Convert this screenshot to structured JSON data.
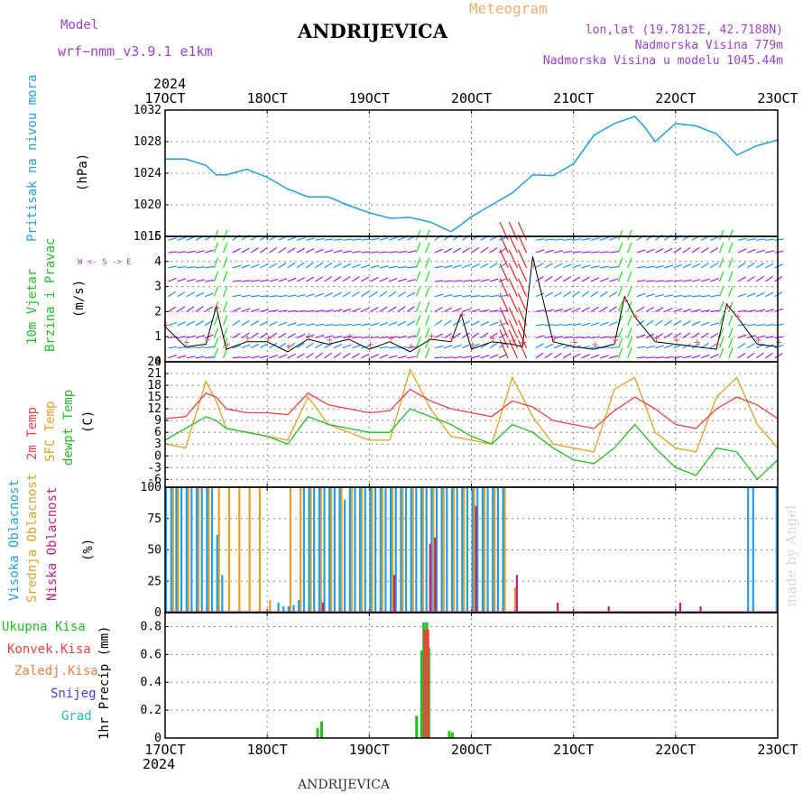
{
  "header": {
    "model_label": "Model",
    "model_name": "wrf−nmm_v3.9.1  e1km",
    "title": "ANDRIJEVICA",
    "meteogram_label": "Meteogram",
    "lonlat": "lon,lat (19.7812E, 42.7188N)",
    "altitude": "Nadmorska Visina 779m",
    "model_altitude": "Nadmorska Visina u modelu 1045.44m"
  },
  "footer": "ANDRIJEVICA",
  "made_by": "made by Angel",
  "time_axis": {
    "year": "2024",
    "ticks": [
      "17OCT",
      "18OCT",
      "19OCT",
      "20OCT",
      "21OCT",
      "22OCT",
      "23OCT"
    ]
  },
  "chart_data": [
    {
      "type": "line",
      "panel": "pressure",
      "labels": {
        "left": "Pritisak na nivou mora",
        "unit": "(hPa)"
      },
      "ylim": [
        1016,
        1032
      ],
      "yticks": [
        "1032",
        "1028",
        "1024",
        "1020",
        "1016"
      ],
      "grid": true,
      "colors": {
        "line": "#1ea0e6"
      },
      "x": [
        0,
        0.2,
        0.4,
        0.5,
        0.6,
        0.8,
        1.0,
        1.2,
        1.4,
        1.6,
        1.8,
        2.0,
        2.2,
        2.4,
        2.6,
        2.8,
        2.9,
        3.0,
        3.2,
        3.4,
        3.6,
        3.8,
        4.0,
        4.2,
        4.4,
        4.6,
        4.7,
        4.8,
        5.0,
        5.2,
        5.4,
        5.6,
        5.8,
        6.0
      ],
      "values": [
        1025.8,
        1025.8,
        1025.0,
        1023.8,
        1023.8,
        1024.5,
        1023.5,
        1022.0,
        1021.0,
        1021.0,
        1019.9,
        1019.0,
        1018.3,
        1018.4,
        1017.8,
        1016.6,
        1017.5,
        1018.5,
        1020.0,
        1021.5,
        1023.8,
        1023.7,
        1025.2,
        1028.8,
        1030.3,
        1031.2,
        1029.8,
        1028.0,
        1030.3,
        1030.0,
        1029.0,
        1026.3,
        1027.5,
        1028.2
      ]
    },
    {
      "type": "line",
      "panel": "wind",
      "labels": {
        "left1": "10m Vjetar",
        "left2": "Brzina i Pravac",
        "unit": "(m/s)",
        "compass": "W <- S -> E"
      },
      "ylim": [
        0,
        5
      ],
      "yticks": [
        "5",
        "4",
        "3",
        "2",
        "1",
        "0"
      ],
      "grid": true,
      "colors": {
        "speed": "#000000",
        "gust": "#ff4040",
        "barb_calm": "#a020f0",
        "barb_mid": "#1e90ff",
        "barb_strong": "#20e020",
        "barb_max": "#ff2020"
      },
      "x": [
        0,
        0.2,
        0.4,
        0.5,
        0.6,
        0.8,
        1.0,
        1.2,
        1.4,
        1.6,
        1.8,
        2.0,
        2.2,
        2.4,
        2.6,
        2.8,
        2.9,
        3.0,
        3.2,
        3.4,
        3.5,
        3.6,
        3.8,
        4.0,
        4.2,
        4.4,
        4.5,
        4.6,
        4.8,
        5.0,
        5.2,
        5.4,
        5.5,
        5.6,
        5.8,
        6.0
      ],
      "series": [
        {
          "values": [
            1.4,
            0.6,
            0.7,
            2.2,
            0.5,
            0.8,
            0.8,
            0.4,
            0.9,
            0.7,
            0.9,
            0.5,
            0.8,
            0.4,
            0.9,
            0.8,
            1.9,
            0.5,
            0.8,
            0.7,
            0.6,
            4.2,
            0.8,
            0.6,
            0.5,
            0.7,
            2.6,
            1.8,
            0.8,
            0.7,
            0.6,
            0.5,
            2.3,
            1.8,
            0.7,
            0.6
          ]
        }
      ]
    },
    {
      "type": "line",
      "panel": "temperature",
      "labels": {
        "left1": "2m Temp",
        "left2": "SFC Temp",
        "left3": "dewpt Temp",
        "unit": "(C)"
      },
      "ylim": [
        -8,
        24
      ],
      "yticks": [
        "24",
        "21",
        "18",
        "15",
        "12",
        "9",
        "6",
        "3",
        "0",
        "-3",
        "-6"
      ],
      "grid": true,
      "colors": {
        "t2m": "#f04040",
        "tsfc": "#e8a020",
        "dewpt": "#20c020"
      },
      "x": [
        0,
        0.2,
        0.4,
        0.5,
        0.6,
        0.8,
        1.0,
        1.2,
        1.4,
        1.6,
        1.8,
        2.0,
        2.2,
        2.4,
        2.6,
        2.8,
        3.0,
        3.2,
        3.4,
        3.6,
        3.8,
        4.0,
        4.2,
        4.4,
        4.6,
        4.8,
        5.0,
        5.2,
        5.4,
        5.6,
        5.8,
        6.0
      ],
      "series": [
        {
          "name": "2m Temp",
          "values": [
            9.5,
            10,
            16,
            15,
            12,
            11,
            11,
            10.5,
            16,
            13,
            12,
            11,
            11.5,
            17,
            14,
            12,
            11,
            10,
            14,
            12.5,
            9,
            8,
            7,
            11.5,
            15,
            12,
            8,
            7,
            12,
            15,
            13,
            9.5
          ]
        },
        {
          "name": "SFC Temp",
          "values": [
            3,
            2,
            19,
            14,
            7,
            6,
            5,
            4,
            15,
            8,
            6,
            4,
            4,
            22,
            12,
            5,
            4,
            3,
            20,
            10,
            3,
            2,
            1,
            17,
            20,
            6,
            2,
            1,
            15,
            20,
            8,
            2
          ]
        },
        {
          "name": "dewpt Temp",
          "values": [
            4,
            7,
            10,
            9,
            7,
            6,
            5,
            3,
            10,
            8,
            7,
            6,
            6,
            12,
            10,
            8,
            5,
            3,
            8,
            6,
            2,
            -1,
            -2,
            2,
            8,
            2,
            -3,
            -5,
            2,
            1,
            -6,
            -1
          ]
        }
      ]
    },
    {
      "type": "bar",
      "panel": "cloud",
      "labels": {
        "left1": "Visoka Oblacnost",
        "left2": "Srednja Oblacnost",
        "left3": "Niska Oblacnost",
        "unit": "(%)"
      },
      "ylim": [
        0,
        100
      ],
      "yticks": [
        "100",
        "75",
        "50",
        "25",
        "0"
      ],
      "grid": true,
      "colors": {
        "high": "#1ea0e6",
        "mid": "#e8a020",
        "low": "#c02080"
      },
      "series": [
        {
          "name": "Visoka Oblacnost",
          "x": [
            0.0,
            0.05,
            0.1,
            0.15,
            0.2,
            0.25,
            0.3,
            0.35,
            0.4,
            0.45,
            0.5,
            0.55,
            1.1,
            1.15,
            1.2,
            1.25,
            1.3,
            1.35,
            1.4,
            1.45,
            1.5,
            1.55,
            1.6,
            1.65,
            1.7,
            1.75,
            1.8,
            1.85,
            1.9,
            1.95,
            2.0,
            2.05,
            2.1,
            2.15,
            2.2,
            2.25,
            2.3,
            2.35,
            2.4,
            2.45,
            2.5,
            2.55,
            2.6,
            2.65,
            2.7,
            2.75,
            2.8,
            2.85,
            2.9,
            2.95,
            3.0,
            3.05,
            3.1,
            3.15,
            3.2,
            3.25,
            3.3,
            5.7,
            5.75,
            5.98
          ],
          "values": [
            100,
            100,
            100,
            100,
            100,
            100,
            100,
            100,
            100,
            100,
            62,
            30,
            8,
            5,
            5,
            6,
            10,
            100,
            100,
            100,
            100,
            100,
            100,
            100,
            100,
            90,
            100,
            100,
            100,
            100,
            100,
            100,
            100,
            100,
            100,
            100,
            100,
            100,
            100,
            100,
            100,
            100,
            100,
            100,
            100,
            100,
            100,
            100,
            100,
            100,
            100,
            100,
            100,
            100,
            100,
            100,
            100,
            100,
            100,
            100
          ]
        },
        {
          "name": "Srednja Oblacnost",
          "x": [
            0.05,
            0.1,
            0.2,
            0.3,
            0.4,
            0.5,
            0.6,
            0.7,
            0.8,
            0.9,
            1.0,
            1.2,
            1.3,
            1.4,
            1.5,
            1.6,
            1.7,
            1.8,
            1.9,
            2.0,
            2.1,
            2.2,
            2.3,
            2.4,
            2.5,
            2.6,
            2.7,
            2.8,
            2.9,
            3.0,
            3.1,
            3.2,
            3.3,
            3.4
          ],
          "values": [
            100,
            100,
            100,
            100,
            100,
            100,
            100,
            100,
            100,
            100,
            10,
            100,
            100,
            100,
            100,
            100,
            100,
            100,
            100,
            100,
            100,
            100,
            100,
            100,
            100,
            100,
            100,
            100,
            100,
            100,
            100,
            100,
            100,
            20
          ]
        },
        {
          "name": "Niska Oblacnost",
          "x": [
            1.5,
            2.2,
            2.55,
            2.6,
            3.0,
            3.4,
            3.8,
            4.3,
            5.0,
            5.2
          ],
          "values": [
            8,
            30,
            55,
            60,
            85,
            30,
            8,
            5,
            8,
            5
          ]
        }
      ]
    },
    {
      "type": "bar",
      "panel": "precipitation",
      "labels": {
        "unit": "1hr Precip (mm)"
      },
      "legend": [
        "Ukupna Kisa",
        "Konvek.Kisa",
        "Zaledj.Kisa",
        "Snijeg",
        "Grad"
      ],
      "legend_colors": [
        "#20c020",
        "#f04040",
        "#f08040",
        "#4040e0",
        "#20c0a0"
      ],
      "ylim": [
        0,
        0.9
      ],
      "yticks": [
        "0.8",
        "0.6",
        "0.4",
        "0.2",
        "0"
      ],
      "grid": true,
      "series": [
        {
          "name": "Ukupna Kisa",
          "x": [
            1.48,
            1.52,
            2.45,
            2.5,
            2.52,
            2.55,
            2.57,
            2.77,
            2.8
          ],
          "values": [
            0.07,
            0.12,
            0.16,
            0.63,
            0.83,
            0.83,
            0.65,
            0.05,
            0.04
          ]
        },
        {
          "name": "Konvek.Kisa",
          "x": [
            2.53,
            2.56
          ],
          "values": [
            0.78,
            0.78
          ]
        }
      ]
    }
  ]
}
